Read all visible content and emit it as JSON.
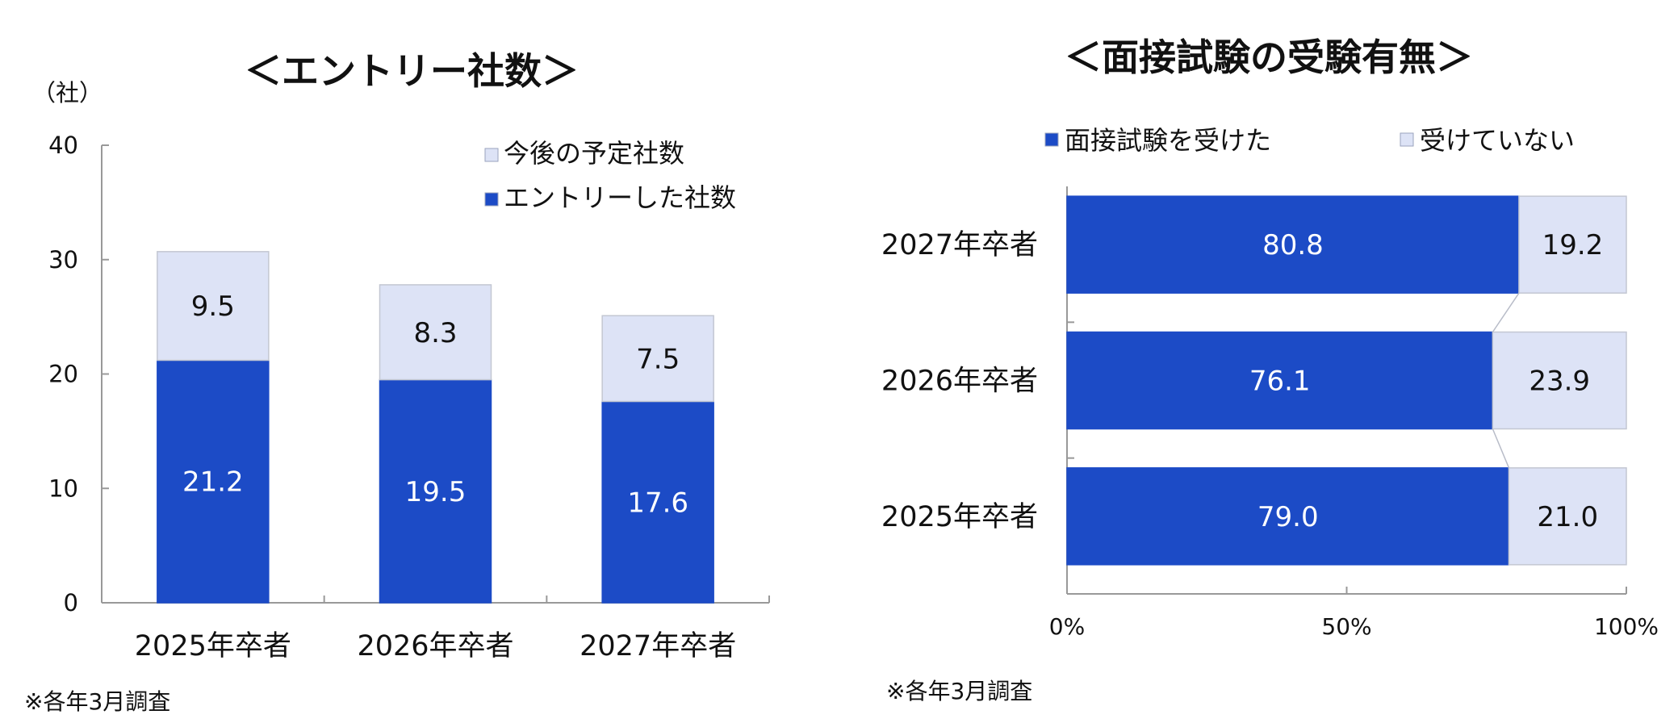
{
  "chart_data": [
    {
      "type": "bar",
      "stacked": true,
      "title": "＜エントリー社数＞",
      "unit_label": "（社）",
      "categories": [
        "2025年卒者",
        "2026年卒者",
        "2027年卒者"
      ],
      "series": [
        {
          "name": "エントリーした社数",
          "values": [
            21.2,
            19.5,
            17.6
          ],
          "color": "#1c4bc6"
        },
        {
          "name": "今後の予定社数",
          "values": [
            9.5,
            8.3,
            7.5
          ],
          "color": "#dde3f6"
        }
      ],
      "y_ticks": [
        "0",
        "10",
        "20",
        "30",
        "40"
      ],
      "ylim": [
        0,
        40
      ],
      "legend_order": [
        "今後の予定社数",
        "エントリーした社数"
      ],
      "legend_position": "top-right",
      "note": "※各年3月調査"
    },
    {
      "type": "bar",
      "orientation": "horizontal",
      "stacked": "percent",
      "title": "＜面接試験の受験有無＞",
      "categories": [
        "2027年卒者",
        "2026年卒者",
        "2025年卒者"
      ],
      "series": [
        {
          "name": "面接試験を受けた",
          "values": [
            80.8,
            76.1,
            79.0
          ],
          "color": "#1c4bc6"
        },
        {
          "name": "受けていない",
          "values": [
            19.2,
            23.9,
            21.0
          ],
          "color": "#dde3f6"
        }
      ],
      "x_ticks": [
        "0%",
        "50%",
        "100%"
      ],
      "xlim": [
        0,
        100
      ],
      "legend_position": "top",
      "note": "※各年3月調査"
    }
  ]
}
